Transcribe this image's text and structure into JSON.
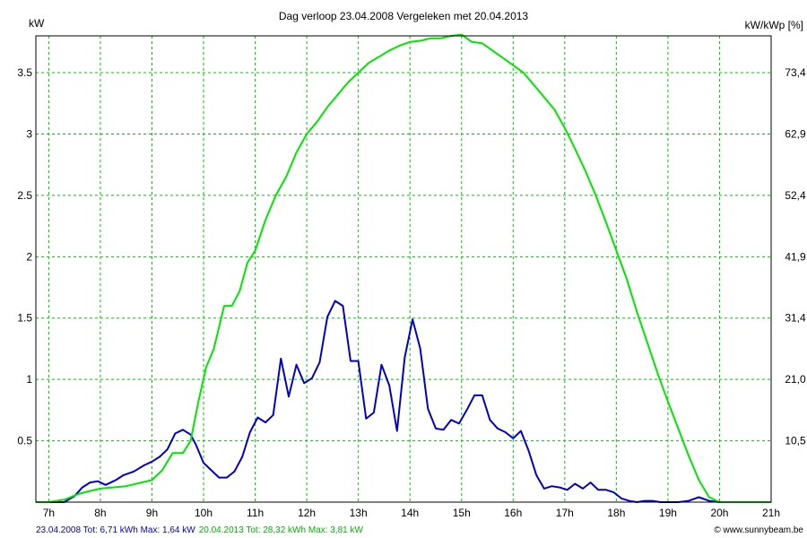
{
  "chart_data": {
    "type": "line",
    "title": "Dag  verloop 23.04.2008   Vergeleken met 20.04.2013",
    "ylabel_left": "kW",
    "ylabel_right": "kW/kWp [%]",
    "xlim": [
      6.75,
      21
    ],
    "ylim": [
      0,
      3.8
    ],
    "grid": true,
    "x_ticks": [
      7,
      8,
      9,
      10,
      11,
      12,
      13,
      14,
      15,
      16,
      17,
      18,
      19,
      20,
      21
    ],
    "x_tick_labels": [
      "7h",
      "8h",
      "9h",
      "10h",
      "11h",
      "12h",
      "13h",
      "14h",
      "15h",
      "16h",
      "17h",
      "18h",
      "19h",
      "20h",
      "21h"
    ],
    "y_ticks": [
      0.5,
      1,
      1.5,
      2,
      2.5,
      3,
      3.5
    ],
    "y_tick_labels": [
      "0.5",
      "1",
      "1.5",
      "2",
      "2.5",
      "3",
      "3.5"
    ],
    "y_right_tick_labels": [
      "10,5",
      "21,0",
      "31,4",
      "41,9",
      "52,4",
      "62,9",
      "73,4"
    ],
    "series": [
      {
        "name": "23.04.2008",
        "color": "#0000c8",
        "x": [
          6.75,
          7.0,
          7.3,
          7.5,
          7.65,
          7.8,
          7.95,
          8.1,
          8.3,
          8.45,
          8.65,
          8.85,
          9.0,
          9.15,
          9.3,
          9.45,
          9.6,
          9.75,
          9.85,
          10.0,
          10.15,
          10.3,
          10.45,
          10.6,
          10.75,
          10.9,
          11.05,
          11.2,
          11.35,
          11.5,
          11.65,
          11.8,
          11.95,
          12.1,
          12.25,
          12.4,
          12.55,
          12.7,
          12.85,
          13.0,
          13.15,
          13.3,
          13.45,
          13.6,
          13.75,
          13.9,
          14.05,
          14.2,
          14.35,
          14.5,
          14.65,
          14.8,
          14.95,
          15.1,
          15.25,
          15.4,
          15.55,
          15.7,
          15.85,
          16.0,
          16.15,
          16.3,
          16.45,
          16.6,
          16.75,
          16.9,
          17.05,
          17.2,
          17.35,
          17.5,
          17.65,
          17.8,
          17.95,
          18.1,
          18.25,
          18.4,
          18.55,
          18.7,
          18.85,
          19.0,
          19.2,
          19.4,
          19.6,
          19.8,
          20.0,
          20.2,
          20.4,
          20.6,
          21.0
        ],
        "values": [
          0,
          0,
          0,
          0.05,
          0.12,
          0.16,
          0.17,
          0.14,
          0.18,
          0.22,
          0.25,
          0.3,
          0.33,
          0.37,
          0.43,
          0.56,
          0.59,
          0.55,
          0.47,
          0.32,
          0.26,
          0.2,
          0.2,
          0.25,
          0.37,
          0.57,
          0.69,
          0.65,
          0.71,
          1.17,
          0.86,
          1.12,
          0.97,
          1.01,
          1.14,
          1.51,
          1.64,
          1.6,
          1.15,
          1.15,
          0.68,
          0.73,
          1.12,
          0.95,
          0.58,
          1.18,
          1.49,
          1.25,
          0.76,
          0.6,
          0.59,
          0.67,
          0.64,
          0.75,
          0.87,
          0.87,
          0.67,
          0.6,
          0.57,
          0.52,
          0.58,
          0.42,
          0.22,
          0.11,
          0.13,
          0.12,
          0.1,
          0.15,
          0.11,
          0.16,
          0.1,
          0.1,
          0.08,
          0.03,
          0.01,
          0.0,
          0.01,
          0.01,
          0.0,
          0.0,
          0.0,
          0.01,
          0.04,
          0.01,
          0.0,
          0.0,
          0.0,
          0.0,
          0.0
        ]
      },
      {
        "name": "20.04.2013",
        "color": "#00e600",
        "x": [
          6.75,
          7.0,
          7.3,
          7.6,
          8.0,
          8.5,
          9.0,
          9.2,
          9.4,
          9.6,
          9.75,
          9.9,
          10.05,
          10.2,
          10.4,
          10.55,
          10.7,
          10.85,
          11.0,
          11.2,
          11.4,
          11.6,
          11.8,
          12.0,
          12.2,
          12.4,
          12.6,
          12.8,
          13.0,
          13.2,
          13.4,
          13.6,
          13.8,
          14.0,
          14.2,
          14.4,
          14.6,
          14.8,
          15.0,
          15.2,
          15.4,
          15.6,
          15.8,
          16.0,
          16.2,
          16.4,
          16.6,
          16.8,
          17.0,
          17.2,
          17.4,
          17.6,
          17.8,
          18.0,
          18.2,
          18.4,
          18.6,
          18.8,
          19.0,
          19.2,
          19.4,
          19.6,
          19.8,
          20.0,
          20.2,
          20.4,
          20.55,
          20.7,
          21.0
        ],
        "values": [
          0,
          0,
          0.02,
          0.07,
          0.11,
          0.13,
          0.18,
          0.26,
          0.4,
          0.4,
          0.5,
          0.82,
          1.1,
          1.25,
          1.6,
          1.6,
          1.72,
          1.95,
          2.05,
          2.3,
          2.5,
          2.65,
          2.85,
          3.0,
          3.1,
          3.22,
          3.32,
          3.42,
          3.5,
          3.58,
          3.63,
          3.68,
          3.72,
          3.75,
          3.76,
          3.78,
          3.78,
          3.8,
          3.81,
          3.75,
          3.74,
          3.68,
          3.62,
          3.56,
          3.5,
          3.4,
          3.3,
          3.2,
          3.05,
          2.88,
          2.7,
          2.5,
          2.28,
          2.05,
          1.82,
          1.55,
          1.3,
          1.05,
          0.82,
          0.6,
          0.38,
          0.18,
          0.04,
          0.0,
          0.0,
          0.0,
          0.0,
          0.0,
          0.0
        ]
      }
    ]
  },
  "footer": {
    "left_blue": "23.04.2008 Tot: 6,71 kWh Max: 1,64 kW",
    "left_green": "20.04.2013 Tot: 28,32 kWh Max: 3,81 kW",
    "right": "© www.sunnybeam.be"
  }
}
